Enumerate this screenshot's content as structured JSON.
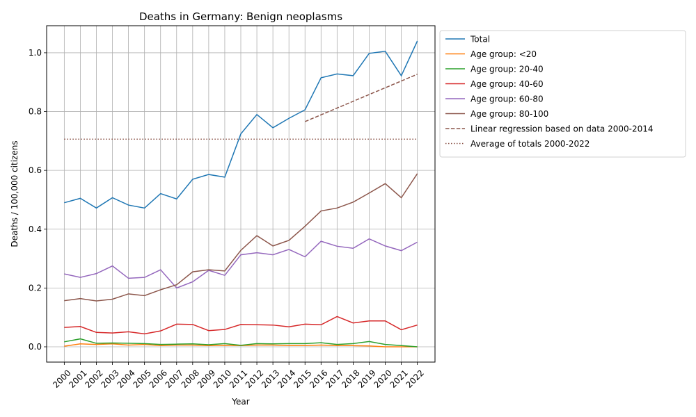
{
  "chart_data": {
    "type": "line",
    "title": "Deaths in Germany: Benign neoplasms",
    "xlabel": "Year",
    "ylabel": "Deaths / 100,000 citizens",
    "x": [
      2000,
      2001,
      2002,
      2003,
      2004,
      2005,
      2006,
      2007,
      2008,
      2009,
      2010,
      2011,
      2012,
      2013,
      2014,
      2015,
      2016,
      2017,
      2018,
      2019,
      2020,
      2021,
      2022
    ],
    "xlim": [
      1998.9,
      2023.1
    ],
    "ylim": [
      -0.052,
      1.092
    ],
    "yticks": [
      0.0,
      0.2,
      0.4,
      0.6,
      0.8,
      1.0
    ],
    "ytick_labels": [
      "0.0",
      "0.2",
      "0.4",
      "0.6",
      "0.8",
      "1.0"
    ],
    "grid": true,
    "legend_position": "outside-top-right",
    "series": [
      {
        "name": "Total",
        "color": "#1f77b4",
        "dash": "solid",
        "values": [
          0.49,
          0.505,
          0.472,
          0.507,
          0.482,
          0.472,
          0.521,
          0.503,
          0.57,
          0.586,
          0.577,
          0.724,
          0.79,
          0.745,
          0.777,
          0.806,
          0.915,
          0.928,
          0.922,
          0.998,
          1.005,
          0.922,
          1.04
        ]
      },
      {
        "name": "Age group: <20",
        "color": "#ff7f0e",
        "dash": "solid",
        "values": [
          0.002,
          0.01,
          0.008,
          0.01,
          0.006,
          0.008,
          0.004,
          0.006,
          0.006,
          0.004,
          0.005,
          0.004,
          0.006,
          0.006,
          0.004,
          0.004,
          0.006,
          0.004,
          0.004,
          0.003,
          0.0,
          0.0,
          0.0
        ]
      },
      {
        "name": "Age group: 20-40",
        "color": "#2ca02c",
        "dash": "solid",
        "values": [
          0.017,
          0.027,
          0.012,
          0.013,
          0.012,
          0.011,
          0.008,
          0.009,
          0.01,
          0.007,
          0.011,
          0.005,
          0.011,
          0.01,
          0.011,
          0.011,
          0.014,
          0.008,
          0.011,
          0.018,
          0.008,
          0.004,
          0.0
        ]
      },
      {
        "name": "Age group: 40-60",
        "color": "#d62728",
        "dash": "solid",
        "values": [
          0.066,
          0.069,
          0.049,
          0.047,
          0.051,
          0.044,
          0.054,
          0.077,
          0.076,
          0.055,
          0.059,
          0.076,
          0.075,
          0.074,
          0.068,
          0.077,
          0.075,
          0.103,
          0.081,
          0.088,
          0.088,
          0.058,
          0.074
        ]
      },
      {
        "name": "Age group: 60-80",
        "color": "#9467bd",
        "dash": "solid",
        "values": [
          0.248,
          0.236,
          0.249,
          0.275,
          0.233,
          0.236,
          0.262,
          0.2,
          0.221,
          0.26,
          0.243,
          0.313,
          0.32,
          0.313,
          0.331,
          0.306,
          0.359,
          0.342,
          0.335,
          0.367,
          0.343,
          0.327,
          0.356
        ]
      },
      {
        "name": "Age group: 80-100",
        "color": "#8c564b",
        "dash": "solid",
        "values": [
          0.157,
          0.164,
          0.156,
          0.162,
          0.18,
          0.174,
          0.194,
          0.211,
          0.255,
          0.262,
          0.258,
          0.328,
          0.378,
          0.343,
          0.362,
          0.41,
          0.462,
          0.472,
          0.492,
          0.523,
          0.555,
          0.507,
          0.589
        ]
      },
      {
        "name": "Linear regression based on data 2000-2014",
        "color": "#8c564b",
        "dash": "dashed",
        "x": [
          2015,
          2022
        ],
        "values": [
          0.766,
          0.927
        ]
      },
      {
        "name": "Average of totals 2000-2022",
        "color": "#8c564b",
        "dash": "dotted",
        "x": [
          2000,
          2022
        ],
        "values": [
          0.706,
          0.706
        ]
      }
    ]
  }
}
